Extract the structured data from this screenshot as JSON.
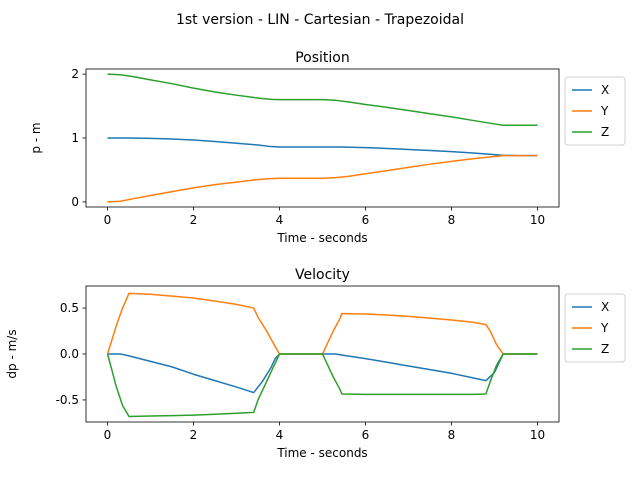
{
  "figure": {
    "suptitle": "1st version - LIN - Cartesian - Trapezoidal"
  },
  "colors": {
    "X": "#1f77b4",
    "Y": "#ff7f0e",
    "Z": "#2ca02c"
  },
  "chart_data": [
    {
      "type": "line",
      "title": "Position",
      "xlabel": "Time - seconds",
      "ylabel": "p - m",
      "xlim": [
        -0.5,
        10.5
      ],
      "ylim": [
        -0.08,
        2.08
      ],
      "xticks": [
        0,
        2,
        4,
        6,
        8,
        10
      ],
      "yticks": [
        0,
        1,
        2
      ],
      "grid": false,
      "legend": "outside-right",
      "series": [
        {
          "name": "X",
          "x": [
            0,
            0.5,
            1,
            1.5,
            2,
            2.5,
            3,
            3.5,
            3.8,
            4,
            4.5,
            5,
            5.4,
            5.8,
            6.2,
            6.6,
            7,
            7.5,
            8,
            8.5,
            9,
            9.2,
            9.6,
            10
          ],
          "y": [
            1.0,
            1.0,
            0.995,
            0.985,
            0.968,
            0.945,
            0.918,
            0.89,
            0.866,
            0.86,
            0.86,
            0.86,
            0.859,
            0.853,
            0.845,
            0.833,
            0.82,
            0.805,
            0.787,
            0.765,
            0.74,
            0.73,
            0.725,
            0.725
          ]
        },
        {
          "name": "Y",
          "x": [
            0,
            0.3,
            0.6,
            1,
            1.5,
            2,
            2.5,
            3,
            3.5,
            3.8,
            4,
            4.5,
            5,
            5.3,
            5.6,
            6,
            6.5,
            7,
            7.5,
            8,
            8.5,
            9,
            9.2,
            10
          ],
          "y": [
            0.0,
            0.01,
            0.05,
            0.1,
            0.16,
            0.22,
            0.27,
            0.31,
            0.35,
            0.365,
            0.37,
            0.37,
            0.37,
            0.38,
            0.4,
            0.44,
            0.49,
            0.54,
            0.59,
            0.635,
            0.675,
            0.71,
            0.725,
            0.725
          ]
        },
        {
          "name": "Z",
          "x": [
            0,
            0.3,
            0.6,
            1,
            1.5,
            2,
            2.5,
            3,
            3.5,
            3.8,
            4,
            4.5,
            5,
            5.3,
            5.6,
            6,
            6.5,
            7,
            7.5,
            8,
            8.5,
            9,
            9.2,
            10
          ],
          "y": [
            2.0,
            1.99,
            1.96,
            1.91,
            1.85,
            1.78,
            1.72,
            1.67,
            1.625,
            1.605,
            1.6,
            1.6,
            1.6,
            1.59,
            1.565,
            1.525,
            1.48,
            1.43,
            1.38,
            1.33,
            1.275,
            1.22,
            1.2,
            1.2
          ]
        }
      ]
    },
    {
      "type": "line",
      "title": "Velocity",
      "xlabel": "Time - seconds",
      "ylabel": "dp - m/s",
      "xlim": [
        -0.5,
        10.5
      ],
      "ylim": [
        -0.74,
        0.74
      ],
      "xticks": [
        0,
        2,
        4,
        6,
        8,
        10
      ],
      "yticks": [
        -0.5,
        0.0,
        0.5
      ],
      "grid": false,
      "legend": "outside-right",
      "series": [
        {
          "name": "X",
          "x": [
            0,
            0.1,
            0.3,
            0.5,
            1,
            1.5,
            2,
            2.5,
            3,
            3.4,
            3.6,
            3.8,
            3.9,
            4,
            4.5,
            5.0,
            5.1,
            5.3,
            5.5,
            6,
            6.5,
            7,
            7.5,
            8,
            8.5,
            8.8,
            9.0,
            9.1,
            9.2,
            10
          ],
          "y": [
            0.0,
            0.0,
            0.0,
            -0.02,
            -0.08,
            -0.14,
            -0.22,
            -0.29,
            -0.36,
            -0.42,
            -0.3,
            -0.15,
            -0.05,
            0.0,
            0.0,
            0.0,
            0.0,
            0.0,
            -0.015,
            -0.05,
            -0.09,
            -0.13,
            -0.17,
            -0.21,
            -0.26,
            -0.29,
            -0.2,
            -0.1,
            0.0,
            0.0
          ]
        },
        {
          "name": "Y",
          "x": [
            0,
            0.1,
            0.2,
            0.35,
            0.5,
            1,
            1.5,
            2,
            2.5,
            3,
            3.4,
            3.5,
            3.7,
            3.9,
            4,
            4.5,
            5.0,
            5.1,
            5.25,
            5.4,
            5.45,
            6,
            6.5,
            7,
            7.5,
            8,
            8.5,
            8.8,
            8.9,
            9.05,
            9.2,
            10
          ],
          "y": [
            0.0,
            0.15,
            0.3,
            0.5,
            0.66,
            0.65,
            0.63,
            0.61,
            0.575,
            0.54,
            0.5,
            0.4,
            0.25,
            0.08,
            0.0,
            0.0,
            0.0,
            0.1,
            0.25,
            0.38,
            0.44,
            0.435,
            0.425,
            0.41,
            0.39,
            0.37,
            0.345,
            0.32,
            0.25,
            0.1,
            0.0,
            0.0
          ]
        },
        {
          "name": "Z",
          "x": [
            0,
            0.1,
            0.2,
            0.35,
            0.5,
            1,
            1.5,
            2,
            2.5,
            3,
            3.4,
            3.5,
            3.7,
            3.9,
            4,
            4.5,
            5.0,
            5.1,
            5.25,
            5.4,
            5.45,
            6,
            6.5,
            7,
            7.5,
            8,
            8.5,
            8.8,
            8.9,
            9.05,
            9.2,
            10
          ],
          "y": [
            0.0,
            -0.17,
            -0.35,
            -0.56,
            -0.68,
            -0.675,
            -0.67,
            -0.665,
            -0.655,
            -0.645,
            -0.635,
            -0.5,
            -0.3,
            -0.1,
            0.0,
            0.0,
            0.0,
            -0.1,
            -0.25,
            -0.38,
            -0.435,
            -0.44,
            -0.44,
            -0.44,
            -0.44,
            -0.44,
            -0.44,
            -0.435,
            -0.3,
            -0.12,
            0.0,
            0.0
          ]
        }
      ]
    }
  ]
}
